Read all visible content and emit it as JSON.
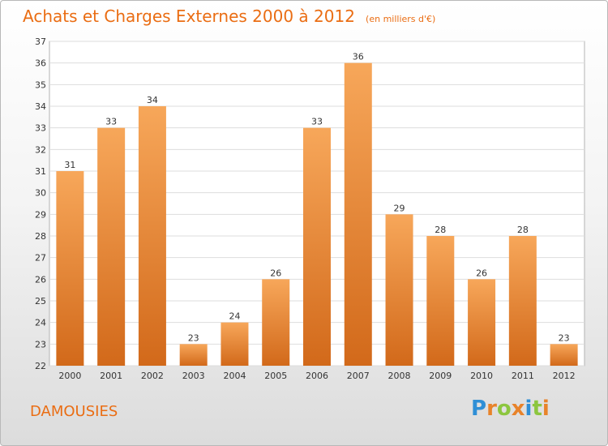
{
  "chart_data": {
    "type": "bar",
    "title": "Achats et Charges Externes 2000 à 2012",
    "subtitle": "(en milliers d'€)",
    "categories": [
      "2000",
      "2001",
      "2002",
      "2003",
      "2004",
      "2005",
      "2006",
      "2007",
      "2008",
      "2009",
      "2010",
      "2011",
      "2012"
    ],
    "values": [
      31,
      33,
      34,
      23,
      24,
      26,
      33,
      36,
      29,
      28,
      26,
      28,
      23
    ],
    "ylim": [
      22,
      37
    ],
    "yticks": [
      22,
      23,
      24,
      25,
      26,
      27,
      28,
      29,
      30,
      31,
      32,
      33,
      34,
      35,
      36,
      37
    ],
    "grid": true,
    "data_labels": true,
    "colors": {
      "bar_light": "#f7a75a",
      "bar_dark": "#d2691a",
      "title": "#ea6d13"
    }
  },
  "commune": "DAMOUSIES",
  "logo": {
    "letters": [
      "P",
      "r",
      "o",
      "x",
      "i",
      "t",
      "i"
    ],
    "colors": [
      "#2f8fd6",
      "#e8832a",
      "#8cc63f",
      "#e8832a",
      "#2f8fd6",
      "#8cc63f",
      "#e8832a"
    ]
  }
}
